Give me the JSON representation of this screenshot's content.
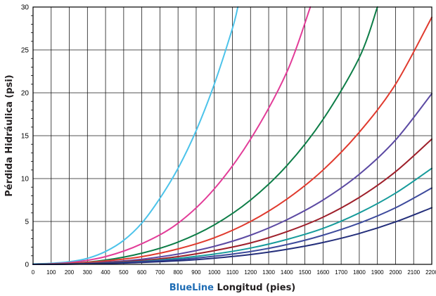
{
  "chart_data": {
    "type": "line",
    "xlabel_brand": "BlueLine",
    "xlabel_rest": " Longitud (pies)",
    "ylabel": "Pérdida Hidráulica (psi)",
    "xlim": [
      0,
      2200
    ],
    "ylim": [
      0,
      30
    ],
    "x_ticks": [
      0,
      100,
      200,
      300,
      400,
      500,
      600,
      700,
      800,
      900,
      1000,
      1100,
      1200,
      1300,
      1400,
      1500,
      1600,
      1700,
      1800,
      1900,
      2000,
      2100,
      2200
    ],
    "y_ticks": [
      0,
      5,
      10,
      15,
      20,
      25,
      30
    ],
    "x_tick_labels": [
      "0",
      "100",
      "200",
      "300",
      "400",
      "500",
      "600",
      "700",
      "800",
      "900",
      "1000",
      "1100",
      "1200",
      "1300",
      "1400",
      "1500",
      "1600",
      "1700",
      "1800",
      "1900",
      "2000",
      "2100",
      "2200"
    ],
    "y_tick_labels": [
      "0",
      "5",
      "10",
      "15",
      "20",
      "25",
      "30"
    ],
    "grid": true,
    "brand_color": "#1f6db5",
    "series": [
      {
        "color": "#4cc3ea",
        "x": [
          0,
          100,
          200,
          300,
          400,
          500,
          600,
          700,
          800,
          900,
          1000,
          1100,
          1130
        ],
        "y": [
          0.05,
          0.12,
          0.3,
          0.7,
          1.5,
          2.8,
          4.8,
          7.7,
          11.2,
          15.6,
          21.0,
          27.5,
          30
        ]
      },
      {
        "color": "#e23c98",
        "x": [
          0,
          200,
          400,
          600,
          800,
          1000,
          1200,
          1400,
          1530
        ],
        "y": [
          0,
          0.2,
          0.9,
          2.4,
          4.8,
          8.8,
          14.6,
          22.4,
          30
        ]
      },
      {
        "color": "#0d7d47",
        "x": [
          0,
          200,
          400,
          600,
          800,
          1000,
          1200,
          1400,
          1600,
          1800,
          1900
        ],
        "y": [
          0,
          0.1,
          0.5,
          1.3,
          2.6,
          4.6,
          7.5,
          11.5,
          16.9,
          24.1,
          30
        ]
      },
      {
        "color": "#e03a2e",
        "x": [
          0,
          200,
          400,
          600,
          800,
          1000,
          1200,
          1400,
          1600,
          1800,
          2000,
          2200
        ],
        "y": [
          0,
          0.1,
          0.4,
          0.9,
          1.8,
          3.1,
          5.0,
          7.6,
          11.0,
          15.4,
          21.0,
          28.8
        ]
      },
      {
        "color": "#5c4aa3",
        "x": [
          0,
          200,
          400,
          600,
          800,
          1000,
          1200,
          1400,
          1600,
          1800,
          2000,
          2200
        ],
        "y": [
          0,
          0.05,
          0.25,
          0.6,
          1.2,
          2.1,
          3.4,
          5.2,
          7.5,
          10.5,
          14.5,
          19.9
        ]
      },
      {
        "color": "#9e1f2a",
        "x": [
          0,
          200,
          400,
          600,
          800,
          1000,
          1200,
          1400,
          1600,
          1800,
          2000,
          2200
        ],
        "y": [
          0,
          0.05,
          0.2,
          0.45,
          0.9,
          1.6,
          2.5,
          3.8,
          5.5,
          7.8,
          10.8,
          14.6
        ]
      },
      {
        "color": "#169b9b",
        "x": [
          0,
          200,
          400,
          600,
          800,
          1000,
          1200,
          1400,
          1600,
          1800,
          2000,
          2200
        ],
        "y": [
          0,
          0.04,
          0.15,
          0.35,
          0.7,
          1.2,
          1.9,
          2.9,
          4.2,
          6.0,
          8.3,
          11.2
        ]
      },
      {
        "color": "#3d4a9c",
        "x": [
          0,
          200,
          400,
          600,
          800,
          1000,
          1200,
          1400,
          1600,
          1800,
          2000,
          2200
        ],
        "y": [
          0,
          0.03,
          0.12,
          0.3,
          0.55,
          0.95,
          1.5,
          2.3,
          3.4,
          4.8,
          6.6,
          8.9
        ]
      },
      {
        "color": "#232e7a",
        "x": [
          0,
          200,
          400,
          600,
          800,
          1000,
          1200,
          1400,
          1600,
          1800,
          2000,
          2200
        ],
        "y": [
          0,
          0.02,
          0.1,
          0.22,
          0.42,
          0.72,
          1.15,
          1.75,
          2.55,
          3.6,
          4.95,
          6.6
        ]
      }
    ]
  }
}
